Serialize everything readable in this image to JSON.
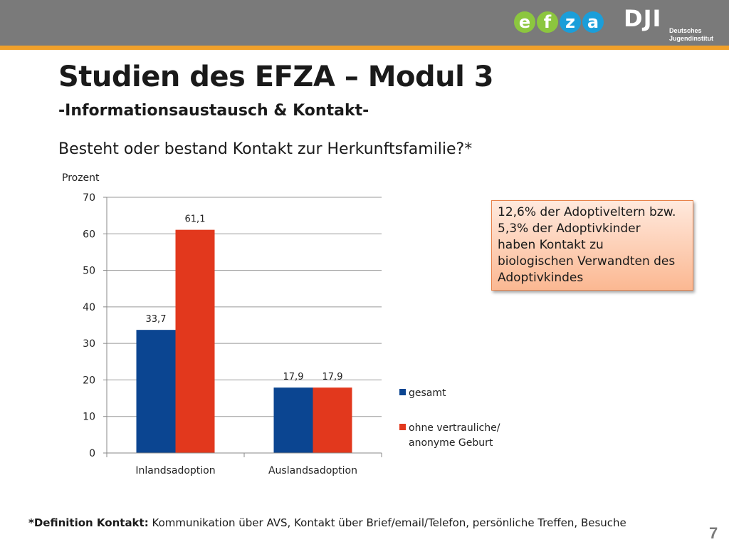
{
  "header": {
    "logo_efza_letters": [
      "e",
      "f",
      "z",
      "a"
    ],
    "logo_efza_colors": [
      "#8cc63f",
      "#8cc63f",
      "#1b9ed9",
      "#1b9ed9"
    ],
    "logo_dji_mark": "DJI",
    "logo_dji_line1": "Deutsches",
    "logo_dji_line2": "Jugendinstitut",
    "bar_color": "#7a7a7a",
    "accent_color": "#f0a02a"
  },
  "slide": {
    "title": "Studien des EFZA – Modul 3",
    "subtitle": "-Informationsaustausch & Kontakt-",
    "question": "Besteht oder bestand Kontakt zur Herkunftsfamilie?*",
    "note": "12,6% der Adoptiveltern bzw.\n5,3% der Adoptivkinder\nhaben Kontakt zu\nbiologischen Verwandten des\nAdoptivkindes",
    "footnote_label": "*Definition Kontakt:",
    "footnote_text": " Kommunikation über AVS, Kontakt über Brief/email/Telefon, persönliche Treffen, Besuche",
    "page_number": "7"
  },
  "chart_data": {
    "type": "bar",
    "title": "",
    "ylabel": "Prozent",
    "xlabel": "",
    "categories": [
      "Inlandsadoption",
      "Auslandsadoption"
    ],
    "series": [
      {
        "name": "gesamt",
        "values": [
          33.7,
          17.9
        ],
        "labels": [
          "33,7",
          "17,9"
        ],
        "color": "#0b4591"
      },
      {
        "name": "ohne vertrauliche/ anonyme Geburt",
        "values": [
          61.1,
          17.9
        ],
        "labels": [
          "61,1",
          "17,9"
        ],
        "color": "#e2381d"
      }
    ],
    "ylim": [
      0,
      70
    ],
    "yticks": [
      "0",
      "10",
      "20",
      "30",
      "40",
      "50",
      "60",
      "70"
    ],
    "grid": true,
    "legend": "right"
  }
}
